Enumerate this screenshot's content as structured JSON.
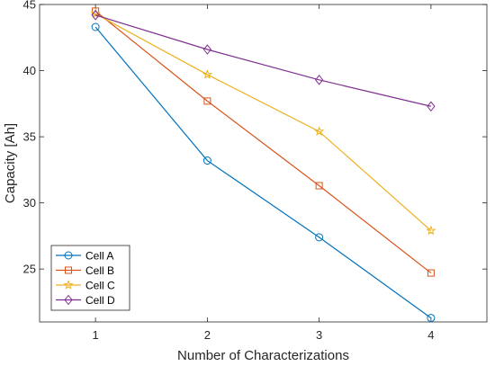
{
  "chart_data": {
    "type": "line",
    "title": "",
    "xlabel": "Number of Characterizations",
    "ylabel": "Capacity [Ah]",
    "x": [
      1,
      2,
      3,
      4
    ],
    "xticks": [
      "1",
      "2",
      "3",
      "4"
    ],
    "xlim": [
      0.5,
      4.5
    ],
    "ylim": [
      21,
      45
    ],
    "yticks": [
      25,
      30,
      35,
      40,
      45
    ],
    "grid": false,
    "legend_position": "bottom-left",
    "series": [
      {
        "name": "Cell A",
        "marker": "circle",
        "color": "#0072BD",
        "values": [
          43.3,
          33.2,
          27.4,
          21.3
        ]
      },
      {
        "name": "Cell B",
        "marker": "square",
        "color": "#D95319",
        "values": [
          44.5,
          37.7,
          31.3,
          24.7
        ]
      },
      {
        "name": "Cell C",
        "marker": "star",
        "color": "#EDB120",
        "values": [
          44.3,
          39.7,
          35.4,
          27.9
        ]
      },
      {
        "name": "Cell D",
        "marker": "diamond",
        "color": "#7E2F8E",
        "values": [
          44.2,
          41.6,
          39.3,
          37.3
        ]
      }
    ]
  }
}
